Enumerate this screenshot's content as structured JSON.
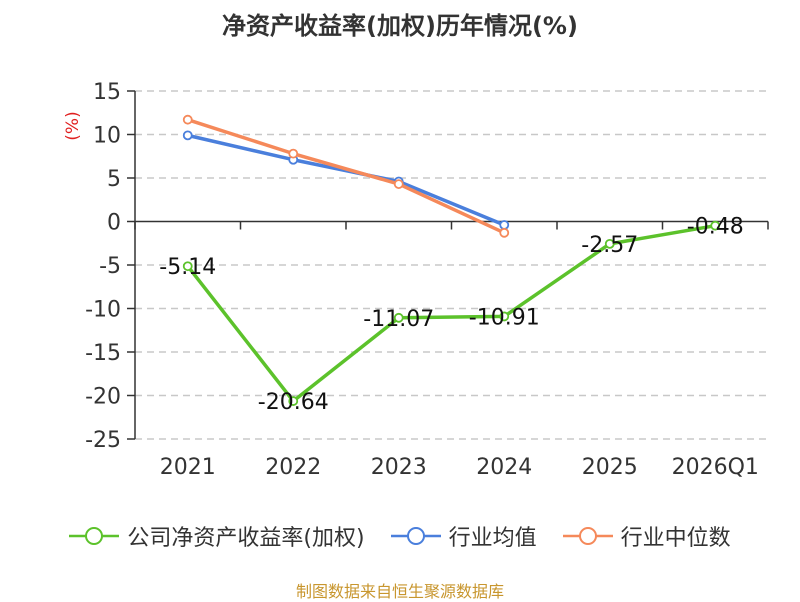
{
  "chart_data": {
    "type": "line",
    "title": "净资产收益率(加权)历年情况(%)",
    "ylabel": "(%)",
    "xlabel": "",
    "categories": [
      "2021",
      "2022",
      "2023",
      "2024",
      "2025",
      "2026Q1"
    ],
    "ylim": [
      -25,
      15
    ],
    "yticks": [
      15,
      10,
      5,
      0,
      -5,
      -10,
      -15,
      -20,
      -25
    ],
    "grid": true,
    "legend_position": "bottom",
    "series": [
      {
        "name": "公司净资产收益率(加权)",
        "color": "#5cc22b",
        "values": [
          -5.14,
          -20.64,
          -11.07,
          -10.91,
          -2.57,
          -0.48
        ],
        "labels": [
          "-5.14",
          "-20.64",
          "-11.07",
          "-10.91",
          "-2.57",
          "-0.48"
        ]
      },
      {
        "name": "行业均值",
        "color": "#4a7fdc",
        "values": [
          9.9,
          7.1,
          4.6,
          -0.4,
          null,
          null
        ]
      },
      {
        "name": "行业中位数",
        "color": "#f5895a",
        "values": [
          11.7,
          7.8,
          4.3,
          -1.3,
          null,
          null
        ]
      }
    ]
  },
  "source": "制图数据来自恒生聚源数据库"
}
